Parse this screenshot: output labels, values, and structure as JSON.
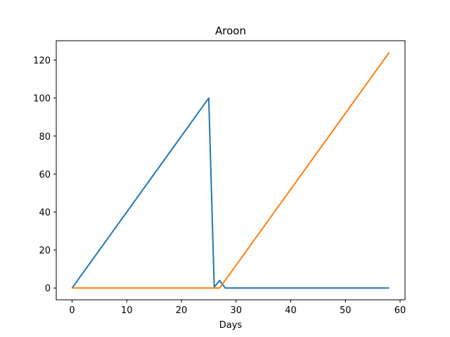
{
  "chart_data": {
    "type": "line",
    "title": "Aroon",
    "xlabel": "Days",
    "ylabel": "",
    "xlim": [
      -2.9,
      60.9
    ],
    "ylim": [
      -6.2,
      130.2
    ],
    "xticks": [
      0,
      10,
      20,
      30,
      40,
      50,
      60
    ],
    "yticks": [
      0,
      20,
      40,
      60,
      80,
      100,
      120
    ],
    "grid": false,
    "series": [
      {
        "color": "#1f77b4",
        "points": [
          [
            0,
            0
          ],
          [
            25,
            100
          ],
          [
            26,
            0.5
          ],
          [
            27,
            4
          ],
          [
            28,
            0
          ],
          [
            58,
            0
          ]
        ]
      },
      {
        "color": "#ff7f0e",
        "points": [
          [
            0,
            0
          ],
          [
            27,
            0
          ],
          [
            58,
            124
          ]
        ]
      }
    ]
  }
}
